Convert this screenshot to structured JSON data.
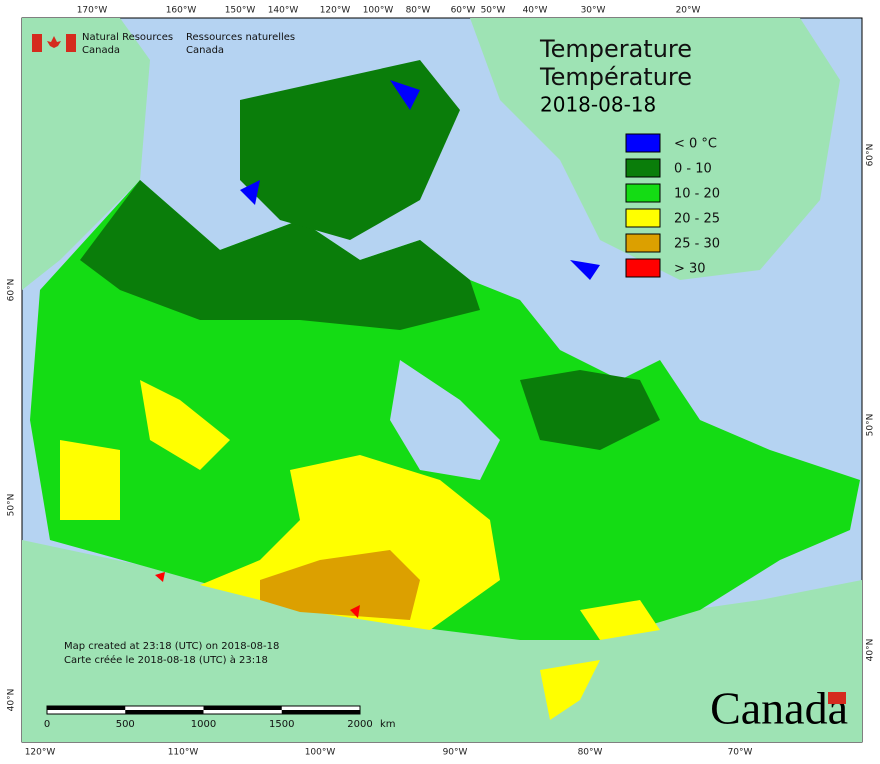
{
  "header": {
    "agency_en": "Natural Resources",
    "agency_en_2": "Canada",
    "agency_fr": "Ressources naturelles",
    "agency_fr_2": "Canada"
  },
  "title": {
    "en": "Temperature",
    "fr": "Température",
    "date": "2018-08-18"
  },
  "legend": [
    {
      "label": "< 0 °C",
      "color": "#0000ff"
    },
    {
      "label": "0 - 10",
      "color": "#0a7d0a"
    },
    {
      "label": "10 - 20",
      "color": "#14dc14"
    },
    {
      "label": "20 - 25",
      "color": "#ffff00"
    },
    {
      "label": "25 - 30",
      "color": "#dca000"
    },
    {
      "label": "> 30",
      "color": "#ff0000"
    }
  ],
  "graticule": {
    "top": [
      "170°W",
      "160°W",
      "150°W",
      "140°W",
      "120°W",
      "100°W",
      "80°W",
      "60°W",
      "50°W",
      "40°W",
      "30°W",
      "20°W"
    ],
    "bottom": [
      "120°W",
      "110°W",
      "100°W",
      "90°W",
      "80°W",
      "70°W"
    ],
    "left": [
      "60°N",
      "50°N",
      "40°N"
    ],
    "right": [
      "60°N",
      "50°N",
      "40°N"
    ]
  },
  "notes": [
    "Map created at 23:18 (UTC) on 2018-08-18",
    "Carte créée le 2018-08-18 (UTC) à 23:18"
  ],
  "scale_bar": {
    "ticks": [
      0,
      500,
      1000,
      1500,
      2000
    ],
    "unit": "km"
  },
  "wordmark": "Canada"
}
